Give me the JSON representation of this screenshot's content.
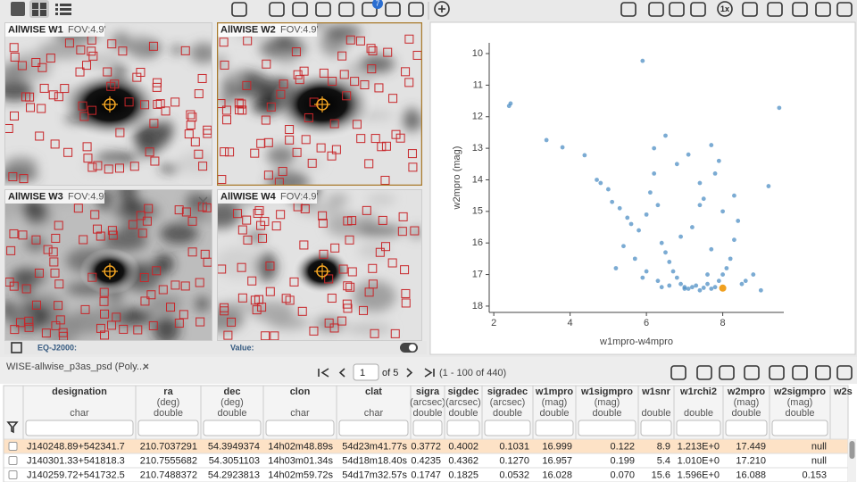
{
  "toolbar": {
    "layer_badge": "7",
    "zoom_label": "1x"
  },
  "image_panels": [
    {
      "title": "AllWISE W1",
      "fov": "FOV:4.9'"
    },
    {
      "title": "AllWISE W2",
      "fov": "FOV:4.9'"
    },
    {
      "title": "AllWISE W3",
      "fov": "FOV:4.9'"
    },
    {
      "title": "AllWISE W4",
      "fov": "FOV:4.9'"
    }
  ],
  "image_footer": {
    "coord_label": "EQ-J2000:",
    "value_label": "Value:"
  },
  "chart_data": {
    "type": "scatter",
    "x_label": "w1mpro-w4mpro",
    "y_label": "w2mpro (mag)",
    "color": "#4f8fc4",
    "x": [
      5.9,
      2.44,
      2.4,
      9.48,
      3.38,
      3.8,
      4.38,
      4.7,
      4.8,
      5.0,
      5.1,
      5.3,
      5.5,
      5.6,
      5.8,
      6.0,
      6.1,
      6.2,
      6.3,
      6.4,
      6.5,
      6.6,
      6.7,
      6.8,
      6.9,
      7.0,
      7.1,
      7.2,
      7.3,
      7.4,
      7.5,
      7.6,
      7.7,
      7.8,
      7.9,
      8.0,
      8.1,
      8.2,
      8.3,
      8.4,
      8.6,
      8.8,
      9.2,
      5.4,
      5.7,
      6.0,
      6.3,
      6.6,
      6.9,
      7.2,
      7.5,
      7.8,
      6.2,
      6.5,
      6.8,
      7.1,
      7.4,
      7.7,
      8.0,
      8.3,
      5.2,
      5.9,
      6.4,
      7.0,
      7.6,
      8.5,
      9.0,
      7.7,
      7.9,
      7.4
    ],
    "values": [
      10.23,
      11.58,
      11.66,
      11.72,
      12.74,
      12.97,
      13.22,
      14.0,
      14.1,
      14.3,
      14.7,
      14.9,
      15.2,
      15.4,
      15.6,
      15.1,
      14.4,
      13.8,
      14.8,
      16.0,
      16.3,
      16.6,
      16.9,
      17.1,
      17.3,
      17.4,
      17.45,
      17.4,
      17.35,
      17.5,
      17.42,
      17.3,
      17.45,
      17.4,
      17.2,
      17.0,
      16.8,
      16.5,
      15.9,
      15.3,
      17.2,
      17.0,
      14.2,
      16.1,
      16.5,
      16.9,
      17.2,
      17.35,
      15.8,
      15.5,
      14.6,
      13.8,
      13.0,
      12.6,
      13.5,
      13.2,
      14.8,
      16.2,
      15.0,
      14.5,
      16.8,
      17.1,
      17.4,
      17.45,
      17.0,
      17.3,
      17.5,
      12.9,
      13.4,
      14.1
    ],
    "highlight": {
      "x": 8.0,
      "y": 17.43,
      "color": "#f0a020"
    },
    "xlim": [
      1.88,
      9.6
    ],
    "ylim": [
      9.66,
      18.2
    ],
    "y_inverted": true,
    "xticks": [
      2,
      4,
      6,
      8
    ],
    "yticks": [
      10,
      11,
      12,
      13,
      14,
      15,
      16,
      17,
      18
    ]
  },
  "table_toolbar": {
    "tab_title": "WISE-allwise_p3as_psd (Poly...",
    "page": 1,
    "page_of": "of 5",
    "range": "(1 - 100 of 440)"
  },
  "table": {
    "columns": [
      {
        "name": "designation",
        "type": "char"
      },
      {
        "name": "ra",
        "unit": "(deg)",
        "type": "double"
      },
      {
        "name": "dec",
        "unit": "(deg)",
        "type": "double"
      },
      {
        "name": "clon",
        "type": "char"
      },
      {
        "name": "clat",
        "type": "char"
      },
      {
        "name": "sigra",
        "unit": "(arcsec)",
        "type": "double"
      },
      {
        "name": "sigdec",
        "unit": "(arcsec)",
        "type": "double"
      },
      {
        "name": "sigradec",
        "unit": "(arcsec)",
        "type": "double"
      },
      {
        "name": "w1mpro",
        "unit": "(mag)",
        "type": "double"
      },
      {
        "name": "w1sigmpro",
        "unit": "(mag)",
        "type": "double"
      },
      {
        "name": "w1snr",
        "type": "double"
      },
      {
        "name": "w1rchi2",
        "type": "double"
      },
      {
        "name": "w2mpro",
        "unit": "(mag)",
        "type": "double"
      },
      {
        "name": "w2sigmpro",
        "unit": "(mag)",
        "type": "double"
      },
      {
        "name": "w2s"
      }
    ],
    "rows": [
      [
        "J140248.89+542341.7",
        "210.7037291",
        "54.3949374",
        "14h02m48.89s",
        "54d23m41.77s",
        "0.3772",
        "0.4002",
        "0.1031",
        "16.999",
        "0.122",
        "8.9",
        "1.213E+0",
        "17.449",
        "null"
      ],
      [
        "J140301.33+541818.3",
        "210.7555682",
        "54.3051103",
        "14h03m01.34s",
        "54d18m18.40s",
        "0.4235",
        "0.4362",
        "0.1270",
        "16.957",
        "0.199",
        "5.4",
        "1.010E+0",
        "17.210",
        "null"
      ],
      [
        "J140259.72+541732.5",
        "210.7488372",
        "54.2923813",
        "14h02m59.72s",
        "54d17m32.57s",
        "0.1747",
        "0.1825",
        "0.0532",
        "16.028",
        "0.070",
        "15.6",
        "1.596E+0",
        "16.088",
        "0.153"
      ]
    ]
  }
}
